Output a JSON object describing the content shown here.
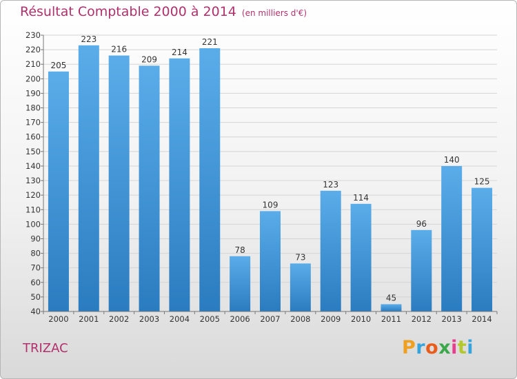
{
  "chart_data": {
    "type": "bar",
    "title": "Résultat Comptable 2000 à 2014",
    "subtitle": "(en milliers d'€)",
    "categories": [
      "2000",
      "2001",
      "2002",
      "2003",
      "2004",
      "2005",
      "2006",
      "2007",
      "2008",
      "2009",
      "2010",
      "2011",
      "2012",
      "2013",
      "2014"
    ],
    "values": [
      205,
      223,
      216,
      209,
      214,
      221,
      78,
      109,
      73,
      123,
      114,
      45,
      96,
      140,
      125
    ],
    "ylim": [
      40,
      230
    ],
    "yticks": [
      40,
      50,
      60,
      70,
      80,
      90,
      100,
      110,
      120,
      130,
      140,
      150,
      160,
      170,
      180,
      190,
      200,
      210,
      220,
      230
    ],
    "grid": true,
    "colors": {
      "bar_top": "#5aade9",
      "bar_bottom": "#2a7cc0",
      "title": "#b0306b",
      "grid": "#d4d4d4"
    }
  },
  "commune": "TRIZAC",
  "logo": {
    "letters": [
      "P",
      "r",
      "o",
      "x",
      "i",
      "t",
      "i"
    ],
    "colors": [
      "#f0a020",
      "#35a3dc",
      "#e85c1c",
      "#3aa84a",
      "#e83c8c",
      "#b3c82a",
      "#35a3dc"
    ]
  }
}
